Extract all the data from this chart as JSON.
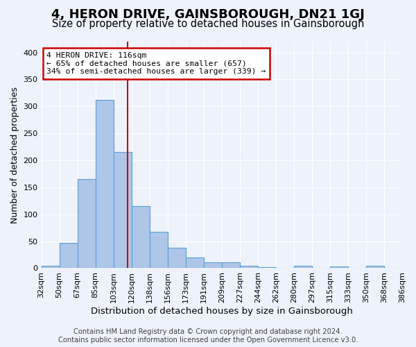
{
  "title": "4, HERON DRIVE, GAINSBOROUGH, DN21 1GJ",
  "subtitle": "Size of property relative to detached houses in Gainsborough",
  "xlabel": "Distribution of detached houses by size in Gainsborough",
  "ylabel": "Number of detached properties",
  "footnote1": "Contains HM Land Registry data © Crown copyright and database right 2024.",
  "footnote2": "Contains public sector information licensed under the Open Government Licence v3.0.",
  "bin_labels": [
    "32sqm",
    "50sqm",
    "67sqm",
    "85sqm",
    "103sqm",
    "120sqm",
    "138sqm",
    "156sqm",
    "173sqm",
    "191sqm",
    "209sqm",
    "227sqm",
    "244sqm",
    "262sqm",
    "280sqm",
    "297sqm",
    "315sqm",
    "333sqm",
    "350sqm",
    "368sqm",
    "386sqm"
  ],
  "bar_values": [
    5,
    47,
    165,
    312,
    215,
    115,
    68,
    38,
    20,
    11,
    11,
    5,
    2,
    0,
    4,
    0,
    3,
    0,
    4,
    0
  ],
  "bar_color": "#aec6e8",
  "bar_edge_color": "#5a9fd4",
  "background_color": "#eef2fb",
  "grid_color": "#ffffff",
  "property_line_color": "#cc0000",
  "annotation_text": "4 HERON DRIVE: 116sqm\n← 65% of detached houses are smaller (657)\n34% of semi-detached houses are larger (339) →",
  "annotation_box_color": "#cc0000",
  "ylim": [
    0,
    420
  ],
  "yticks": [
    0,
    50,
    100,
    150,
    200,
    250,
    300,
    350,
    400
  ],
  "title_fontsize": 13,
  "subtitle_fontsize": 10.5,
  "xlabel_fontsize": 9.5,
  "ylabel_fontsize": 9,
  "tick_fontsize": 8,
  "footnote_fontsize": 7.2,
  "line_x_index": 4.76
}
